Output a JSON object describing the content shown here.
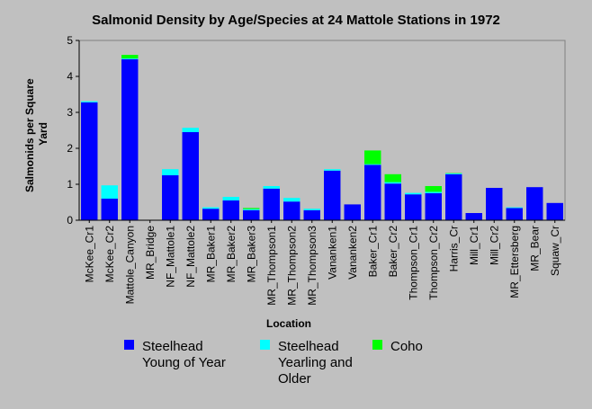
{
  "chart_data": {
    "type": "bar",
    "stacked": true,
    "title": "Salmonid Density by Age/Species at 24 Mattole Stations in 1972",
    "xlabel": "Location",
    "ylabel_lines": [
      "Salmonids per Square",
      "Yard"
    ],
    "ylim": [
      0,
      5
    ],
    "yticks": [
      0,
      1,
      2,
      3,
      4,
      5
    ],
    "grid": false,
    "legend_position": "bottom",
    "categories": [
      "McKee_Cr1",
      "McKee_Cr2",
      "Mattole_Canyon",
      "MR_Bridge",
      "NF_Mattole1",
      "NF_Mattole2",
      "MR_Baker1",
      "MR_Baker2",
      "MR_Baker3",
      "MR_Thompson1",
      "MR_Thompson2",
      "MR_Thompson3",
      "Vananken1",
      "Vananken2",
      "Baker_Cr1",
      "Baker_Cr2",
      "Thompson_Cr1",
      "Thompson_Cr2",
      "Harris_Cr",
      "Mill_Cr1",
      "Mill_Cr2",
      "MR_Ettersberg",
      "MR_Bear",
      "Squaw_Cr"
    ],
    "series": [
      {
        "name": "Steelhead Young of Year",
        "color": "#0000ff",
        "values": [
          3.28,
          0.6,
          4.48,
          0,
          1.25,
          2.45,
          0.32,
          0.55,
          0.28,
          0.88,
          0.52,
          0.28,
          1.38,
          0.44,
          1.54,
          1.02,
          0.72,
          0.75,
          1.28,
          0.2,
          0.9,
          0.34,
          0.92,
          0.48
        ]
      },
      {
        "name": "Steelhead Yearling and Older",
        "color": "#00ffff",
        "values": [
          0.03,
          0.37,
          0.02,
          0,
          0.17,
          0.12,
          0.04,
          0.1,
          0.03,
          0.07,
          0.1,
          0.04,
          0.04,
          0,
          0.02,
          0.04,
          0.04,
          0.04,
          0.02,
          0,
          0,
          0.02,
          0,
          0
        ]
      },
      {
        "name": "Coho",
        "color": "#00ff00",
        "values": [
          0,
          0,
          0.1,
          0,
          0,
          0,
          0,
          0,
          0.03,
          0,
          0,
          0,
          0,
          0,
          0.38,
          0.22,
          0,
          0.16,
          0.01,
          0,
          0,
          0,
          0,
          0
        ]
      }
    ],
    "legend_entries": [
      {
        "lines": [
          "Steelhead",
          "Young of Year"
        ],
        "color": "#0000ff"
      },
      {
        "lines": [
          "Steelhead",
          "Yearling and",
          "Older"
        ],
        "color": "#00ffff"
      },
      {
        "lines": [
          "Coho"
        ],
        "color": "#00ff00"
      }
    ]
  }
}
